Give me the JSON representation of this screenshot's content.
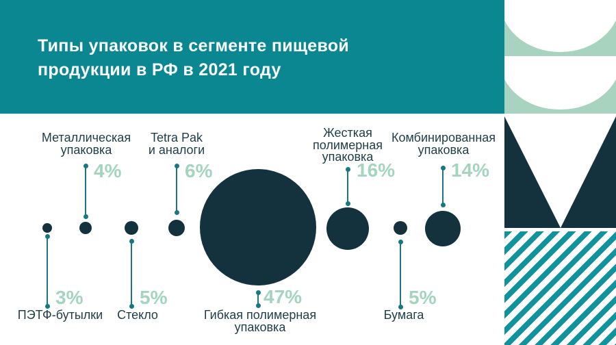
{
  "header": {
    "title_line1": "Типы упаковок в сегменте пищевой",
    "title_line2": "продукции в РФ в 2021 году"
  },
  "chart_data": {
    "type": "bubble",
    "title": "Типы упаковок в сегменте пищевой продукции в РФ в 2021 году",
    "unit": "%",
    "items": [
      {
        "label": "ПЭТФ-бутылки",
        "value": 3,
        "percent_label": "3%",
        "label_position": "below"
      },
      {
        "label": "Металлическая\nупаковка",
        "value": 4,
        "percent_label": "4%",
        "label_position": "above"
      },
      {
        "label": "Стекло",
        "value": 5,
        "percent_label": "5%",
        "label_position": "below"
      },
      {
        "label": "Tetra Pak\nи аналоги",
        "value": 6,
        "percent_label": "6%",
        "label_position": "above"
      },
      {
        "label": "Гибкая полимерная\nупаковка",
        "value": 47,
        "percent_label": "47%",
        "label_position": "below"
      },
      {
        "label": "Жесткая\nполимерная\nупаковка",
        "value": 16,
        "percent_label": "16%",
        "label_position": "above"
      },
      {
        "label": "Бумага",
        "value": 5,
        "percent_label": "5%",
        "label_position": "below"
      },
      {
        "label": "Комбинированная\nупаковка",
        "value": 14,
        "percent_label": "14%",
        "label_position": "above"
      }
    ]
  },
  "colors": {
    "header_teal": "#0a8791",
    "mint_tile": "#a8d3bf",
    "navy": "#14323e",
    "connector_teal": "#177882",
    "stripe_teal": "#10939c",
    "percent_text": "#a3d5be",
    "label_text": "#1f3d47",
    "background": "#ffffff"
  }
}
